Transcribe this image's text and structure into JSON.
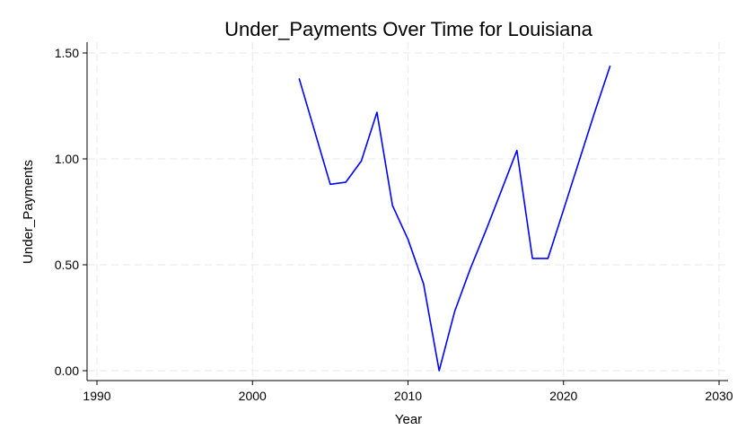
{
  "chart_data": {
    "type": "line",
    "title": "Under_Payments Over Time for Louisiana",
    "xlabel": "Year",
    "ylabel": "Under_Payments",
    "xlim": [
      1990,
      2030
    ],
    "ylim": [
      0,
      1.5
    ],
    "xticks": [
      1990,
      2000,
      2010,
      2020,
      2030
    ],
    "xtick_labels": [
      "1990",
      "2000",
      "2010",
      "2020",
      "2030"
    ],
    "yticks": [
      0,
      0.5,
      1.0,
      1.5
    ],
    "ytick_labels": [
      "0.00",
      "0.50",
      "1.00",
      "1.50"
    ],
    "grid": true,
    "series": [
      {
        "color": "#0000ff",
        "x": [
          2003,
          2005,
          2006,
          2007,
          2008,
          2009,
          2010,
          2011,
          2012,
          2013,
          2014,
          2015,
          2016,
          2017,
          2018,
          2019,
          2020,
          2021,
          2022,
          2023
        ],
        "y": [
          1.38,
          0.88,
          0.89,
          0.99,
          1.22,
          0.78,
          0.62,
          0.41,
          0.0,
          0.28,
          0.48,
          0.66,
          0.85,
          1.04,
          0.53,
          0.53,
          0.76,
          0.99,
          1.22,
          1.44
        ]
      }
    ]
  }
}
